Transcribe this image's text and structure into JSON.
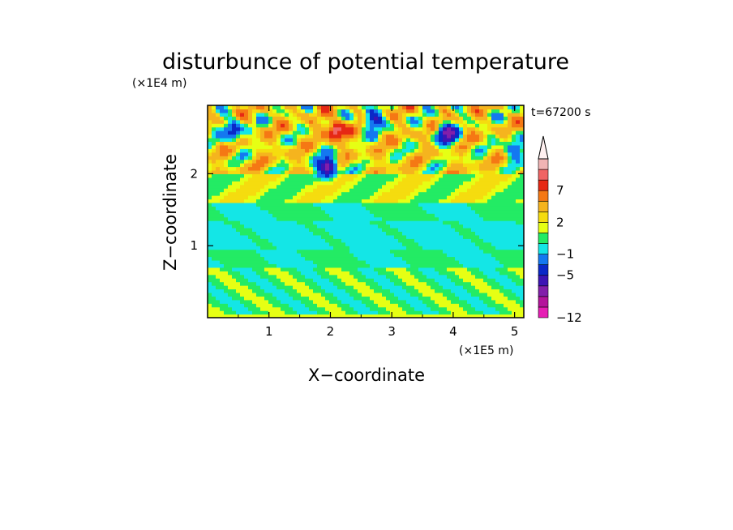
{
  "chart_data": {
    "type": "heatmap",
    "title": "disturbunce of potential temperature",
    "time_label": "t=67200 s",
    "xlabel": "X−coordinate",
    "ylabel": "Z−coordinate",
    "x_unit": "(×1E5 m)",
    "y_unit": "(×1E4 m)",
    "xlim": [
      0,
      5.15
    ],
    "ylim": [
      0,
      2.95
    ],
    "x_ticks": [
      "1",
      "2",
      "3",
      "4",
      "5"
    ],
    "y_ticks": [
      "1",
      "2"
    ],
    "colorbar": {
      "levels": [
        -12,
        -11,
        -9,
        -7,
        -5,
        -3,
        -1,
        0,
        1,
        2,
        3,
        5,
        7,
        9,
        11
      ],
      "colors": [
        "#e61eb4",
        "#b4149b",
        "#821eaa",
        "#3c14b4",
        "#0a28c8",
        "#1478f0",
        "#14e6e6",
        "#23eb64",
        "#e6ff14",
        "#f5dc0f",
        "#f5b41e",
        "#f57814",
        "#e62814",
        "#f06464",
        "#f0b4b4"
      ],
      "extend": "max",
      "labels": [
        "7",
        "2",
        "−1",
        "−5",
        "−12"
      ],
      "label_values": [
        7,
        2,
        -1,
        -5,
        -12
      ]
    },
    "field_description_zones": [
      {
        "z_range": [
          0,
          0.05
        ],
        "x_range": [
          0,
          5.15
        ],
        "value": 1
      },
      {
        "z_range": [
          0.05,
          0.7
        ],
        "x_range": [
          0,
          5.15
        ],
        "value": 0.5
      },
      {
        "z_range": [
          0.7,
          0.95
        ],
        "x_range": [
          0,
          5.15
        ],
        "value": 0
      },
      {
        "z_range": [
          0.95,
          1.35
        ],
        "x_range": [
          0,
          5.15
        ],
        "value": -0.5
      },
      {
        "z_range": [
          1.35,
          1.6
        ],
        "x_range": [
          0,
          5.15
        ],
        "value": 0
      },
      {
        "z_range": [
          1.6,
          2.0
        ],
        "x_range": [
          0,
          5.15
        ],
        "value": 1.5
      },
      {
        "z_range": [
          2.0,
          2.95
        ],
        "x_range": [
          0,
          5.15
        ],
        "value": 3
      }
    ],
    "extremes": [
      {
        "x": 2.1,
        "z": 2.6,
        "value": 11
      },
      {
        "x": 1.95,
        "z": 2.1,
        "value": -9
      },
      {
        "x": 2.7,
        "z": 2.75,
        "value": -5
      },
      {
        "x": 3.9,
        "z": 2.55,
        "value": -9
      },
      {
        "x": 0.4,
        "z": 2.6,
        "value": -5
      },
      {
        "x": 5.0,
        "z": 2.35,
        "value": -3
      }
    ]
  }
}
